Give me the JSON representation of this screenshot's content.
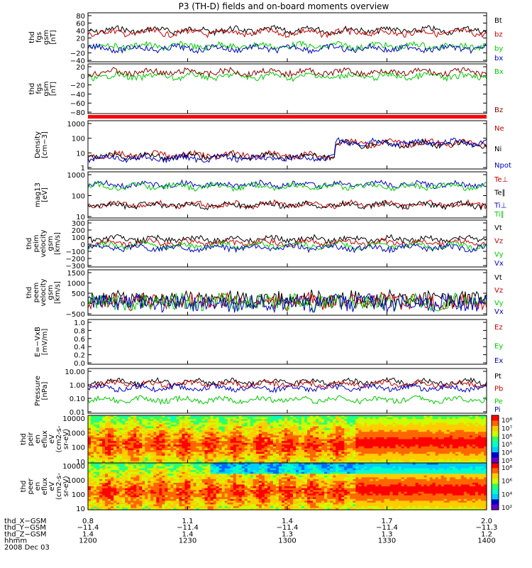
{
  "chart_data": {
    "type": "line",
    "title": "P3 (TH-D) fields and on-board moments overview",
    "x": {
      "tick_hhmm": [
        "1200",
        "1230",
        "1300",
        "1330",
        "1400"
      ],
      "range_hhmm": [
        1200,
        1400
      ]
    },
    "panels": [
      {
        "ylabel": [
          "thd",
          "fgs",
          "gsm",
          "[nT]"
        ],
        "ticks": [
          "80",
          "60",
          "40",
          "20",
          "0",
          "−20",
          "−40"
        ],
        "ylim": [
          -50,
          90
        ],
        "series": [
          {
            "name": "Bt",
            "color": "#000000",
            "level": 40
          },
          {
            "name": "bz",
            "color": "#cc0000",
            "level": 33
          },
          {
            "name": "by",
            "color": "#00cc00",
            "level": -5
          },
          {
            "name": "bx",
            "color": "#0000cc",
            "level": -12
          }
        ]
      },
      {
        "ylabel": [
          "thd",
          "fgs",
          "gsm",
          "[nT]"
        ],
        "ticks": [
          "20",
          "0",
          "−20",
          "−40",
          "−60",
          "−80"
        ],
        "ylim": [
          -90,
          30
        ],
        "series": [
          {
            "name": "Bx",
            "color": "#00cc00",
            "level": 0
          },
          {
            "name": "Bz",
            "color": "#8b0000",
            "level": 10
          }
        ]
      },
      {
        "ylabel": [
          "Density",
          "[cm−3]"
        ],
        "ticks": [
          "1000",
          "100",
          "10",
          "1"
        ],
        "log": true,
        "ylim": [
          1,
          1500
        ],
        "series": [
          {
            "name": "Ne",
            "color": "#cc0000",
            "level": 8
          },
          {
            "name": "Ni",
            "color": "#000000",
            "level": 7
          },
          {
            "name": "Npot",
            "color": "#0000cc",
            "level": 5
          }
        ]
      },
      {
        "ylabel": [
          "mag13",
          "[eV]"
        ],
        "ticks": [
          "1000",
          "100",
          "10"
        ],
        "log": true,
        "ylim": [
          8,
          8000
        ],
        "series": [
          {
            "name": "Te⊥",
            "color": "#cc0000",
            "level": 60
          },
          {
            "name": "Te∥",
            "color": "#000000",
            "level": 55
          },
          {
            "name": "Ti⊥",
            "color": "#0000cc",
            "level": 1200
          },
          {
            "name": "Ti∥",
            "color": "#00cc00",
            "level": 900
          }
        ]
      },
      {
        "ylabel": [
          "thd",
          "peim",
          "velocity",
          "gsm",
          "[km/s]"
        ],
        "ticks": [
          "300",
          "200",
          "100",
          "0",
          "−100",
          "−200",
          "−300"
        ],
        "ylim": [
          -330,
          330
        ],
        "series": [
          {
            "name": "Vt",
            "color": "#000000",
            "level": 60
          },
          {
            "name": "Vz",
            "color": "#cc0000",
            "level": 10
          },
          {
            "name": "Vy",
            "color": "#00cc00",
            "level": -30
          },
          {
            "name": "Vx",
            "color": "#0000cc",
            "level": -60
          }
        ]
      },
      {
        "ylabel": [
          "thd",
          "peem",
          "velocity",
          "gsm",
          "[km/s]"
        ],
        "ticks": [
          "1500",
          "1000",
          "500",
          "0",
          "−500"
        ],
        "ylim": [
          -650,
          1550
        ],
        "series": [
          {
            "name": "Vt",
            "color": "#000000",
            "level": 120
          },
          {
            "name": "Vz",
            "color": "#cc0000",
            "level": 20
          },
          {
            "name": "Vy",
            "color": "#00cc00",
            "level": -20
          },
          {
            "name": "Vx",
            "color": "#0000cc",
            "level": -60
          }
        ]
      },
      {
        "ylabel": [
          "E=−VxB",
          "[mV/m]"
        ],
        "ticks": [
          "1.0",
          "0.8",
          "0.6",
          "0.4",
          "0.2",
          "0.0"
        ],
        "ylim": [
          0,
          1
        ],
        "series": [
          {
            "name": "Ez",
            "color": "#cc0000",
            "level": null
          },
          {
            "name": "Ey",
            "color": "#00cc00",
            "level": null
          },
          {
            "name": "Ex",
            "color": "#0000cc",
            "level": null
          }
        ]
      },
      {
        "ylabel": [
          "Pressure",
          "[nPa]"
        ],
        "ticks": [
          "10.00",
          "1.00",
          "0.10",
          "0.01"
        ],
        "log": true,
        "ylim": [
          0.01,
          10
        ],
        "series": [
          {
            "name": "Pt",
            "color": "#000000",
            "level": 1.2
          },
          {
            "name": "Pb",
            "color": "#cc0000",
            "level": 0.9
          },
          {
            "name": "Pe",
            "color": "#00cc00",
            "level": 0.08
          },
          {
            "name": "Pi",
            "color": "#0000cc",
            "level": 0.5
          }
        ]
      },
      {
        "ylabel": [
          "thd",
          "peir",
          "en",
          "eflux",
          "eV",
          "(cm2-s-",
          "sr-eV)"
        ],
        "ticks": [
          "10000",
          "1000",
          "100",
          "10"
        ],
        "log": true,
        "ylim": [
          8,
          20000
        ],
        "spectrogram": true
      },
      {
        "ylabel": [
          "thd",
          "peer",
          "en",
          "eflux",
          "eV",
          "(cm2-s-",
          "sr-eV)"
        ],
        "ticks": [
          "10000",
          "1000",
          "100",
          "10"
        ],
        "log": true,
        "ylim": [
          8,
          20000
        ],
        "spectrogram": true
      }
    ],
    "colorbars": [
      {
        "ticks": [
          "10⁸",
          "10⁷",
          "10⁶",
          "10⁵",
          "10⁴",
          "10³"
        ]
      },
      {
        "ticks": [
          "10⁸",
          "10⁶",
          "10⁴",
          "10²"
        ]
      }
    ],
    "ephemeris": [
      {
        "label": "thd_X−GSM",
        "values": [
          "0.8",
          "1.1",
          "1.4",
          "1.7",
          "2.0"
        ]
      },
      {
        "label": "thd_Y−GSM",
        "values": [
          "−11.4",
          "−11.4",
          "−11.4",
          "−11.4",
          "−11.3"
        ]
      },
      {
        "label": "thd_Z−GSM",
        "values": [
          "1.4",
          "1.4",
          "1.3",
          "1.3",
          "1.2"
        ]
      },
      {
        "label": "hhmm",
        "values": [
          "1200",
          "1230",
          "1300",
          "1330",
          "1400"
        ]
      },
      {
        "label": "2008 Dec 03",
        "values": []
      }
    ],
    "grid": false,
    "legend": "right"
  }
}
